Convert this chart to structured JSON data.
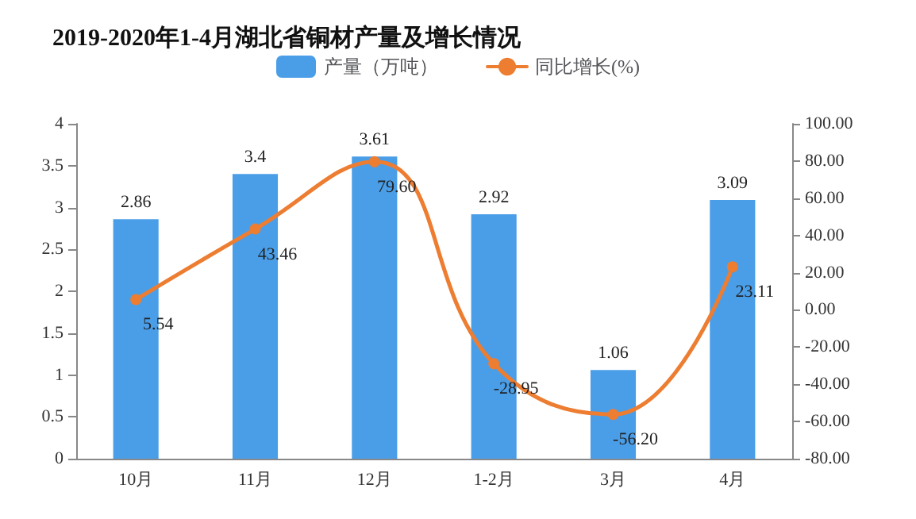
{
  "chart_data": {
    "type": "bar",
    "title": "2019-2020年1-4月湖北省铜材产量及增长情况",
    "categories": [
      "10月",
      "11月",
      "12月",
      "1-2月",
      "3月",
      "4月"
    ],
    "series": [
      {
        "name": "产量（万吨）",
        "color": "#4a9ee8",
        "values": [
          2.86,
          3.4,
          3.61,
          2.92,
          1.06,
          3.09
        ],
        "value_labels": [
          "2.86",
          "3.4",
          "3.61",
          "2.92",
          "1.06",
          "3.09"
        ]
      },
      {
        "name": "同比增长(%)",
        "type": "line",
        "axis": "y2",
        "color": "#ed7d31",
        "values": [
          5.54,
          43.46,
          79.6,
          -28.95,
          -56.2,
          23.11
        ],
        "value_labels": [
          "5.54",
          "43.46",
          "79.60",
          "-28.95",
          "-56.20",
          "23.11"
        ]
      }
    ],
    "ylim": [
      0,
      4
    ],
    "yticks": [
      0,
      0.5,
      1,
      1.5,
      2,
      2.5,
      3,
      3.5,
      4
    ],
    "y2lim": [
      -80,
      100
    ],
    "y2ticks": [
      {
        "value": -80,
        "label": "-80.00"
      },
      {
        "value": -60,
        "label": "-60.00"
      },
      {
        "value": -40,
        "label": "-40.00"
      },
      {
        "value": -20,
        "label": "-20.00"
      },
      {
        "value": 0,
        "label": "0.00"
      },
      {
        "value": 20,
        "label": "20.00"
      },
      {
        "value": 40,
        "label": "40.00"
      },
      {
        "value": 60,
        "label": "60.00"
      },
      {
        "value": 80,
        "label": "80.00"
      },
      {
        "value": 100,
        "label": "100.00"
      }
    ],
    "legend": "top",
    "grid": false,
    "marker": "circle",
    "line_style": "solid"
  }
}
